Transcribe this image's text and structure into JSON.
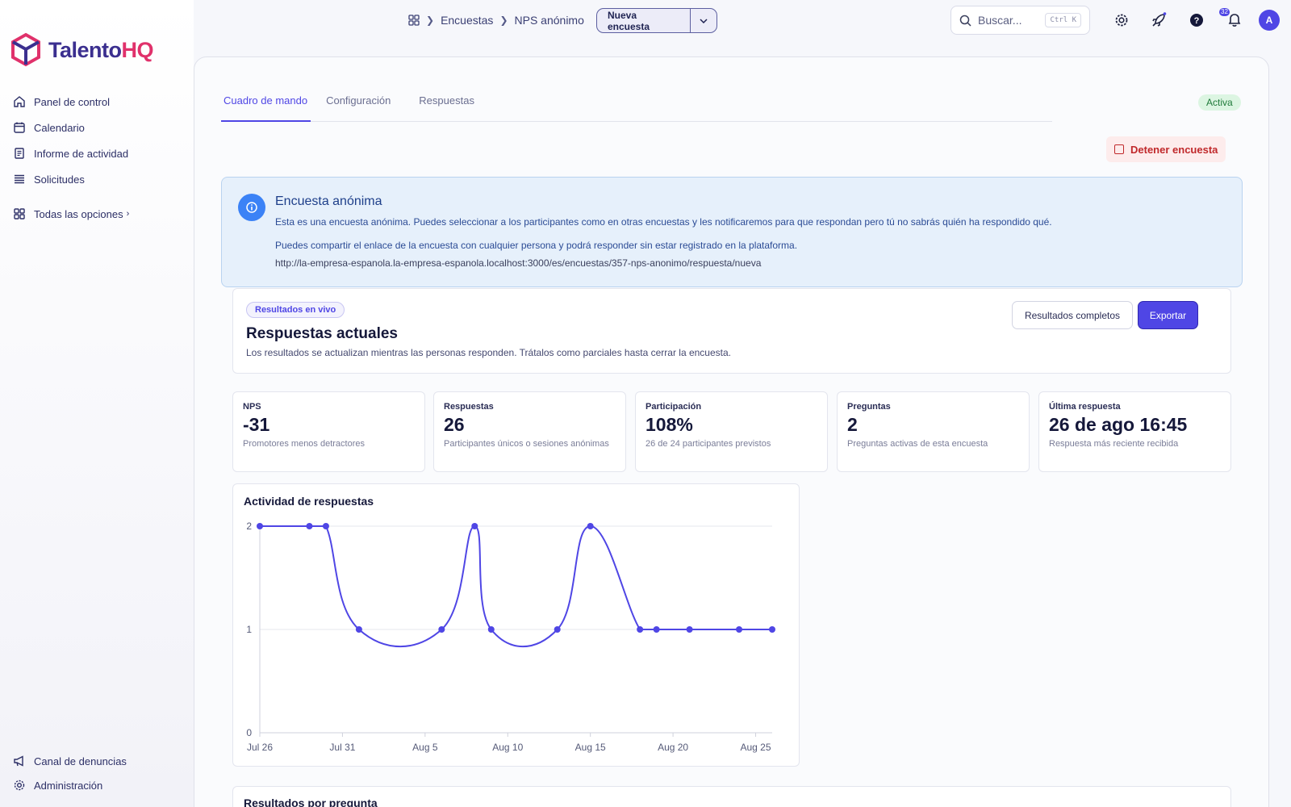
{
  "brand": {
    "name_main": "Talento",
    "name_accent": "HQ"
  },
  "sidebar": {
    "items": [
      {
        "label": "Panel de control",
        "icon": "home-icon"
      },
      {
        "label": "Calendario",
        "icon": "calendar-icon"
      },
      {
        "label": "Informe de actividad",
        "icon": "report-icon"
      },
      {
        "label": "Solicitudes",
        "icon": "list-icon"
      }
    ],
    "all_options": "Todas las opciones",
    "bottom": [
      {
        "label": "Canal de denuncias",
        "icon": "megaphone-icon"
      },
      {
        "label": "Administración",
        "icon": "gear-icon"
      }
    ]
  },
  "topbar": {
    "breadcrumb": [
      "Encuestas",
      "NPS anónimo"
    ],
    "new_button": "Nueva encuesta",
    "search_placeholder": "Buscar...",
    "search_shortcut": "Ctrl K",
    "notifications_count": "32",
    "avatar_initial": "A"
  },
  "tabs": [
    "Cuadro de mando",
    "Configuración",
    "Respuestas"
  ],
  "status": "Activa",
  "stop_button": "Detener encuesta",
  "info": {
    "title": "Encuesta anónima",
    "p1": "Esta es una encuesta anónima. Puedes seleccionar a los participantes como en otras encuestas y les notificaremos para que respondan pero tú no sabrás quién ha respondido qué.",
    "p2": "Puedes compartir el enlace de la encuesta con cualquier persona y podrá responder sin estar registrado en la plataforma.",
    "url": "http://la-empresa-espanola.la-empresa-espanola.localhost:3000/es/encuestas/357-nps-anonimo/respuesta/nueva"
  },
  "live": {
    "tag": "Resultados en vivo",
    "title": "Respuestas actuales",
    "subtitle": "Los resultados se actualizan mientras las personas responden. Trátalos como parciales hasta cerrar la encuesta.",
    "full_results": "Resultados completos",
    "export": "Exportar"
  },
  "stats": [
    {
      "label": "NPS",
      "value": "-31",
      "desc": "Promotores menos detractores"
    },
    {
      "label": "Respuestas",
      "value": "26",
      "desc": "Participantes únicos o sesiones anónimas"
    },
    {
      "label": "Participación",
      "value": "108%",
      "desc": "26 de 24 participantes previstos"
    },
    {
      "label": "Preguntas",
      "value": "2",
      "desc": "Preguntas activas de esta encuesta"
    },
    {
      "label": "Última respuesta",
      "value": "26 de ago 16:45",
      "desc": "Respuesta más reciente recibida"
    }
  ],
  "chart_data": {
    "type": "line",
    "title": "Actividad de respuestas",
    "x": [
      "2024-07-26",
      "2024-07-29",
      "2024-07-30",
      "2024-08-01",
      "2024-08-06",
      "2024-08-08",
      "2024-08-09",
      "2024-08-13",
      "2024-08-15",
      "2024-08-18",
      "2024-08-19",
      "2024-08-21",
      "2024-08-24",
      "2024-08-26"
    ],
    "values": [
      2,
      2,
      2,
      1,
      1,
      2,
      1,
      1,
      2,
      1,
      1,
      1,
      1,
      1
    ],
    "x_tick_labels": [
      "Jul 26",
      "Jul 31",
      "Aug 5",
      "Aug 10",
      "Aug 15",
      "Aug 20",
      "Aug 25"
    ],
    "y_ticks": [
      0,
      1,
      2
    ],
    "ylim": [
      0,
      2
    ],
    "grid": true,
    "color": "#4f46e5"
  },
  "per_question_title": "Resultados por pregunta"
}
